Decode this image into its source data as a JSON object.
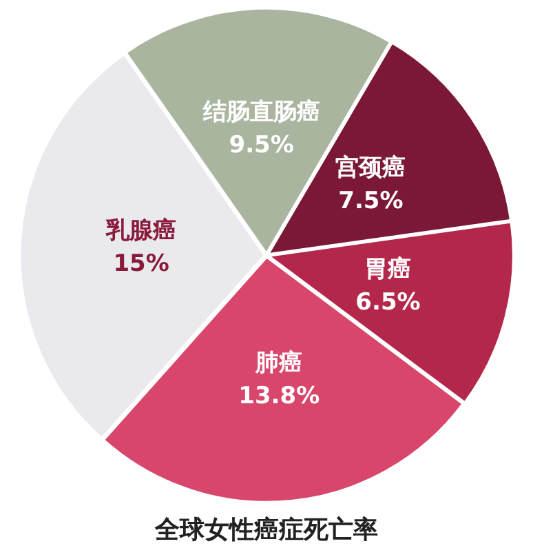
{
  "chart_data": {
    "type": "pie",
    "title": "全球女性癌症死亡率",
    "categories": [
      "结肠直肠癌",
      "宫颈癌",
      "胃癌",
      "肺癌",
      "乳腺癌"
    ],
    "values": [
      9.5,
      7.5,
      6.5,
      13.8,
      15
    ],
    "value_labels": [
      "9.5%",
      "7.5%",
      "6.5%",
      "13.8%",
      "15%"
    ],
    "colors": [
      "#a9b59e",
      "#7b1836",
      "#b3284a",
      "#d8466c",
      "#e9e9ee"
    ],
    "legend": false
  }
}
